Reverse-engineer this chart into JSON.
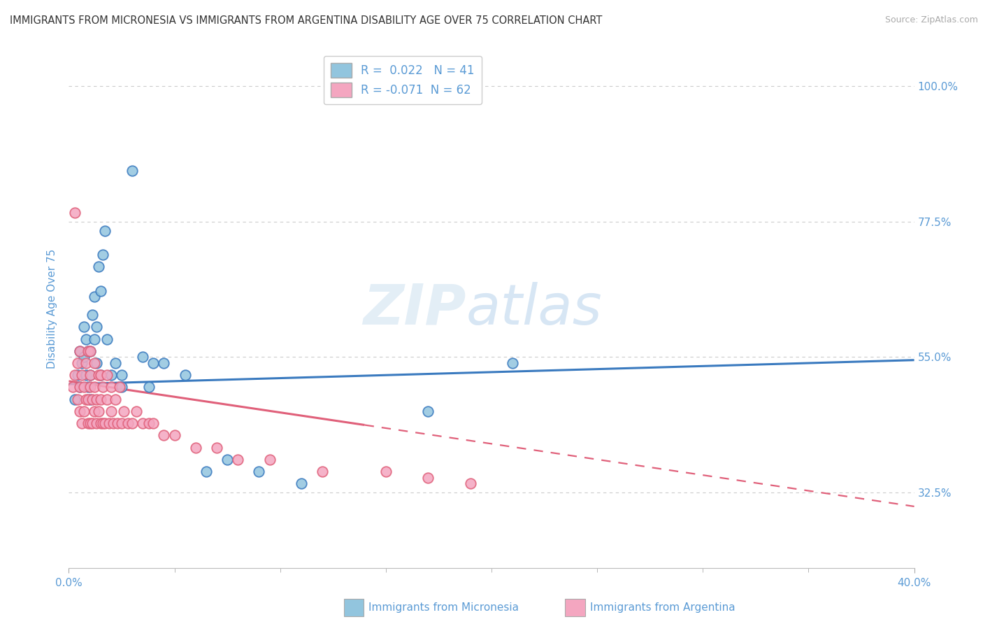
{
  "title": "IMMIGRANTS FROM MICRONESIA VS IMMIGRANTS FROM ARGENTINA DISABILITY AGE OVER 75 CORRELATION CHART",
  "source": "Source: ZipAtlas.com",
  "ylabel": "Disability Age Over 75",
  "ytick_labels": [
    "32.5%",
    "55.0%",
    "77.5%",
    "100.0%"
  ],
  "ytick_values": [
    0.325,
    0.55,
    0.775,
    1.0
  ],
  "xlim": [
    0.0,
    0.4
  ],
  "ylim": [
    0.2,
    1.06
  ],
  "r_micronesia": 0.022,
  "n_micronesia": 41,
  "r_argentina": -0.071,
  "n_argentina": 62,
  "color_micronesia": "#92c5de",
  "color_argentina": "#f4a6c0",
  "line_color_micronesia": "#3a7abf",
  "line_color_argentina": "#e0607a",
  "legend_label_micronesia": "Immigrants from Micronesia",
  "legend_label_argentina": "Immigrants from Argentina",
  "background_color": "#ffffff",
  "grid_color": "#cccccc",
  "title_color": "#333333",
  "axis_label_color": "#5b9bd5",
  "micronesia_x": [
    0.003,
    0.004,
    0.005,
    0.005,
    0.006,
    0.007,
    0.007,
    0.008,
    0.008,
    0.009,
    0.009,
    0.01,
    0.01,
    0.01,
    0.011,
    0.012,
    0.012,
    0.013,
    0.013,
    0.014,
    0.015,
    0.015,
    0.016,
    0.017,
    0.018,
    0.02,
    0.022,
    0.025,
    0.025,
    0.03,
    0.035,
    0.038,
    0.04,
    0.045,
    0.055,
    0.065,
    0.075,
    0.09,
    0.11,
    0.17,
    0.21
  ],
  "micronesia_y": [
    0.48,
    0.52,
    0.5,
    0.56,
    0.54,
    0.55,
    0.6,
    0.52,
    0.58,
    0.5,
    0.56,
    0.48,
    0.52,
    0.56,
    0.62,
    0.58,
    0.65,
    0.54,
    0.6,
    0.7,
    0.52,
    0.66,
    0.72,
    0.76,
    0.58,
    0.52,
    0.54,
    0.5,
    0.52,
    0.86,
    0.55,
    0.5,
    0.54,
    0.54,
    0.52,
    0.36,
    0.38,
    0.36,
    0.34,
    0.46,
    0.54
  ],
  "argentina_x": [
    0.002,
    0.003,
    0.004,
    0.004,
    0.005,
    0.005,
    0.005,
    0.006,
    0.006,
    0.007,
    0.007,
    0.008,
    0.008,
    0.009,
    0.009,
    0.009,
    0.01,
    0.01,
    0.01,
    0.01,
    0.011,
    0.011,
    0.012,
    0.012,
    0.012,
    0.013,
    0.013,
    0.014,
    0.014,
    0.015,
    0.015,
    0.015,
    0.016,
    0.016,
    0.017,
    0.018,
    0.018,
    0.019,
    0.02,
    0.02,
    0.021,
    0.022,
    0.023,
    0.024,
    0.025,
    0.026,
    0.028,
    0.03,
    0.032,
    0.035,
    0.038,
    0.04,
    0.045,
    0.05,
    0.06,
    0.07,
    0.08,
    0.095,
    0.12,
    0.15,
    0.17,
    0.19
  ],
  "argentina_y": [
    0.5,
    0.52,
    0.48,
    0.54,
    0.46,
    0.5,
    0.56,
    0.44,
    0.52,
    0.46,
    0.5,
    0.48,
    0.54,
    0.44,
    0.48,
    0.56,
    0.44,
    0.5,
    0.52,
    0.56,
    0.44,
    0.48,
    0.46,
    0.5,
    0.54,
    0.44,
    0.48,
    0.46,
    0.52,
    0.44,
    0.48,
    0.52,
    0.44,
    0.5,
    0.44,
    0.48,
    0.52,
    0.44,
    0.46,
    0.5,
    0.44,
    0.48,
    0.44,
    0.5,
    0.44,
    0.46,
    0.44,
    0.44,
    0.46,
    0.44,
    0.44,
    0.44,
    0.42,
    0.42,
    0.4,
    0.4,
    0.38,
    0.38,
    0.36,
    0.36,
    0.35,
    0.34
  ],
  "argentina_outlier_x": [
    0.003
  ],
  "argentina_outlier_y": [
    0.79
  ],
  "argentina_line_solid_end": 0.14,
  "micronesia_line_slope": 0.1,
  "micronesia_line_intercept": 0.505,
  "argentina_line_slope": -0.52,
  "argentina_line_intercept": 0.51
}
